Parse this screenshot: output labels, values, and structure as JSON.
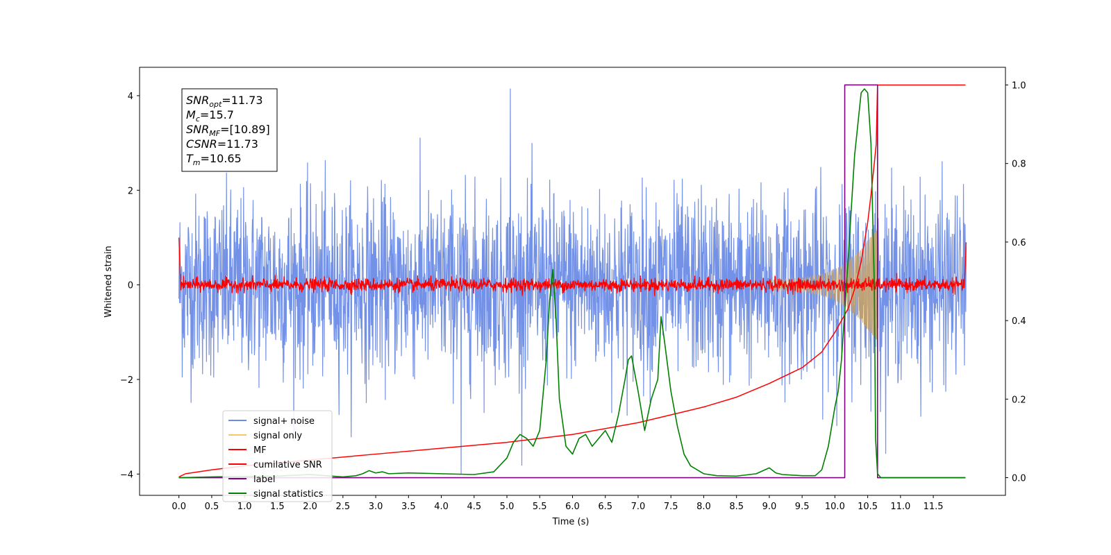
{
  "chart_data": {
    "type": "line",
    "title": "",
    "xlabel": "Time (s)",
    "ylabel": "Whitened strain",
    "y2label": "",
    "xlim": [
      -0.6,
      12.6
    ],
    "ylim": [
      -4.45,
      4.6
    ],
    "y2lim": [
      -0.045,
      1.045
    ],
    "x_ticks": [
      "0.0",
      "0.5",
      "1.0",
      "1.5",
      "2.0",
      "2.5",
      "3.0",
      "3.5",
      "4.0",
      "4.5",
      "5.0",
      "5.5",
      "6.0",
      "6.5",
      "7.0",
      "7.5",
      "8.0",
      "8.5",
      "9.0",
      "9.5",
      "10.0",
      "10.5",
      "11.0",
      "11.5"
    ],
    "y_ticks": [
      "4",
      "2",
      "0",
      "−2",
      "−4"
    ],
    "y_tick_values": [
      4,
      2,
      0,
      -2,
      -4
    ],
    "y2_ticks": [
      "1.0",
      "0.8",
      "0.6",
      "0.4",
      "0.2",
      "0.0"
    ],
    "y2_tick_values": [
      1.0,
      0.8,
      0.6,
      0.4,
      0.2,
      0.0
    ],
    "grid": false,
    "legend_placement": "lower-left",
    "legend": [
      {
        "label": "signal+ noise",
        "color": "#6b8be6"
      },
      {
        "label": "signal only",
        "color": "#f5c76b"
      },
      {
        "label": "MF",
        "color": "#ff0000"
      },
      {
        "label": "cumilative SNR",
        "color": "#ff0000"
      },
      {
        "label": "label",
        "color": "#800080"
      },
      {
        "label": "signal statistics",
        "color": "#008000"
      }
    ],
    "annotation": {
      "lines": [
        {
          "sym": "SNR",
          "sub": "opt",
          "value": "=11.73"
        },
        {
          "sym": "M",
          "sub": "c",
          "value": "=15.7"
        },
        {
          "sym": "SNR",
          "sub": "MF",
          "value": "=[10.89]"
        },
        {
          "sym": "CSNR",
          "sub": "",
          "value": "=11.73"
        },
        {
          "sym": "T",
          "sub": "m",
          "value": "=10.65"
        }
      ]
    },
    "series": [
      {
        "name": "signal+ noise",
        "axis": "left",
        "color": "#6b8be6",
        "x_range": [
          0.0,
          12.0
        ],
        "amplitude_band": [
          -2.6,
          2.6
        ],
        "peak_max": 4.15,
        "peak_min": -4.0
      },
      {
        "name": "signal only",
        "axis": "left",
        "color": "#c8a56e",
        "envelope": {
          "x": [
            9.0,
            9.5,
            9.8,
            10.0,
            10.2,
            10.4,
            10.5,
            10.6,
            10.65
          ],
          "amp": [
            0.1,
            0.15,
            0.22,
            0.32,
            0.5,
            0.75,
            0.95,
            1.1,
            1.2
          ]
        }
      },
      {
        "name": "MF",
        "axis": "left",
        "color": "#ff0000",
        "x_range": [
          0.0,
          12.0
        ],
        "amplitude_band": [
          -0.15,
          0.15
        ],
        "peak_max": 0.35,
        "start_value": 1.0,
        "end_value": 0.9
      },
      {
        "name": "cumilative SNR",
        "axis": "right",
        "color": "#ff0000",
        "x": [
          0.0,
          0.1,
          0.5,
          1.0,
          2.0,
          3.0,
          4.0,
          5.0,
          6.0,
          7.0,
          7.5,
          8.0,
          8.5,
          9.0,
          9.5,
          9.8,
          10.0,
          10.2,
          10.3,
          10.4,
          10.5,
          10.55,
          10.6,
          10.63,
          10.65,
          11.0,
          11.5,
          11.99
        ],
        "y": [
          0.002,
          0.01,
          0.02,
          0.03,
          0.045,
          0.06,
          0.075,
          0.09,
          0.11,
          0.14,
          0.16,
          0.18,
          0.205,
          0.24,
          0.28,
          0.32,
          0.37,
          0.43,
          0.48,
          0.55,
          0.65,
          0.72,
          0.8,
          0.85,
          1.0,
          1.0,
          1.0,
          1.0
        ]
      },
      {
        "name": "label",
        "axis": "right",
        "color": "#800080",
        "x": [
          0.0,
          10.15,
          10.15,
          10.65,
          10.65,
          11.99
        ],
        "y": [
          0.0,
          0.0,
          1.0,
          1.0,
          0.0,
          0.0
        ]
      },
      {
        "name": "signal statistics",
        "axis": "right",
        "color": "#008000",
        "x": [
          0.0,
          0.5,
          1.0,
          1.5,
          2.0,
          2.5,
          2.7,
          2.8,
          2.9,
          3.0,
          3.1,
          3.2,
          3.5,
          4.0,
          4.5,
          4.8,
          5.0,
          5.1,
          5.2,
          5.3,
          5.4,
          5.5,
          5.6,
          5.65,
          5.7,
          5.75,
          5.8,
          5.9,
          6.0,
          6.1,
          6.2,
          6.3,
          6.4,
          6.5,
          6.6,
          6.7,
          6.8,
          6.85,
          6.9,
          7.0,
          7.1,
          7.2,
          7.3,
          7.35,
          7.4,
          7.5,
          7.6,
          7.7,
          7.8,
          8.0,
          8.2,
          8.5,
          8.8,
          9.0,
          9.1,
          9.2,
          9.5,
          9.7,
          9.8,
          9.9,
          10.0,
          10.05,
          10.1,
          10.2,
          10.3,
          10.35,
          10.4,
          10.45,
          10.5,
          10.55,
          10.6,
          10.62,
          10.65,
          10.7,
          11.0,
          11.5,
          11.99
        ],
        "y": [
          0.0,
          0.002,
          0.003,
          0.004,
          0.008,
          0.002,
          0.005,
          0.01,
          0.018,
          0.012,
          0.015,
          0.01,
          0.012,
          0.01,
          0.008,
          0.015,
          0.05,
          0.09,
          0.11,
          0.1,
          0.08,
          0.12,
          0.3,
          0.45,
          0.53,
          0.4,
          0.2,
          0.08,
          0.06,
          0.1,
          0.11,
          0.08,
          0.1,
          0.12,
          0.09,
          0.16,
          0.25,
          0.3,
          0.31,
          0.22,
          0.12,
          0.2,
          0.25,
          0.41,
          0.35,
          0.22,
          0.13,
          0.06,
          0.03,
          0.01,
          0.005,
          0.004,
          0.01,
          0.025,
          0.012,
          0.008,
          0.005,
          0.005,
          0.02,
          0.08,
          0.18,
          0.22,
          0.3,
          0.55,
          0.82,
          0.9,
          0.98,
          0.99,
          0.98,
          0.85,
          0.5,
          0.1,
          0.01,
          0.0,
          0.0,
          0.0,
          0.0
        ]
      }
    ]
  }
}
